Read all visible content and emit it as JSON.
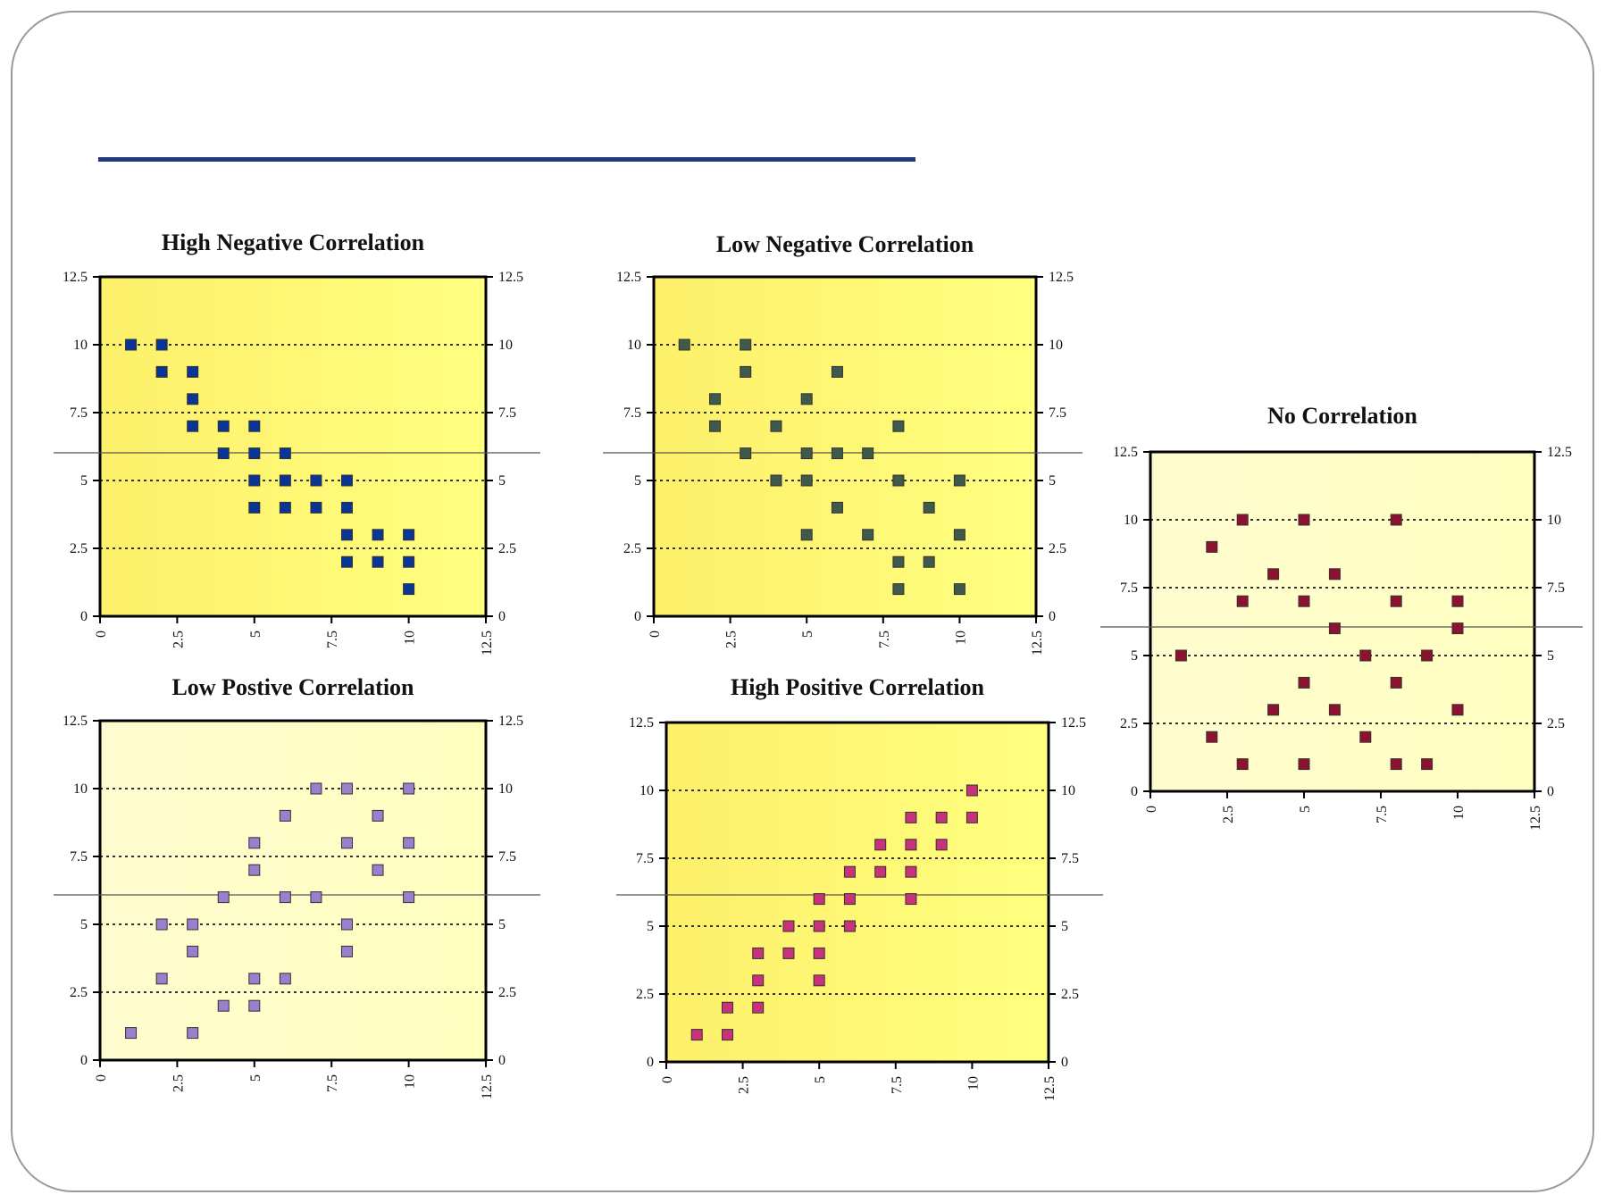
{
  "colors": {
    "rule": "#1f3a7a",
    "plot_background_bright": "#ffff80",
    "plot_background_pale": "#ffffc8"
  },
  "chart_data": [
    {
      "id": "high-negative",
      "type": "scatter",
      "title": "High Negative Correlation",
      "xlim": [
        0,
        12.5
      ],
      "ylim": [
        0,
        12.5
      ],
      "x_ticks": [
        "0",
        "2.5",
        "5",
        "7.5",
        "10",
        "12.5"
      ],
      "y_ticks": [
        "0",
        "2.5",
        "5",
        "7.5",
        "10",
        "12.5"
      ],
      "grid": "dotted horizontal at 2.5, 5, 7.5, 10",
      "marker_color": "#0a3596",
      "background": "#ffff80",
      "points": [
        [
          1,
          10
        ],
        [
          2,
          10
        ],
        [
          2,
          9
        ],
        [
          3,
          9
        ],
        [
          3,
          8
        ],
        [
          3,
          7
        ],
        [
          4,
          7
        ],
        [
          5,
          7
        ],
        [
          4,
          6
        ],
        [
          5,
          6
        ],
        [
          6,
          6
        ],
        [
          5,
          5
        ],
        [
          6,
          5
        ],
        [
          7,
          5
        ],
        [
          8,
          5
        ],
        [
          5,
          4
        ],
        [
          6,
          4
        ],
        [
          7,
          4
        ],
        [
          8,
          4
        ],
        [
          8,
          3
        ],
        [
          9,
          3
        ],
        [
          10,
          3
        ],
        [
          8,
          2
        ],
        [
          9,
          2
        ],
        [
          10,
          2
        ],
        [
          10,
          1
        ]
      ]
    },
    {
      "id": "low-negative",
      "type": "scatter",
      "title": "Low Negative Correlation",
      "xlim": [
        0,
        12.5
      ],
      "ylim": [
        0,
        12.5
      ],
      "x_ticks": [
        "0",
        "2.5",
        "5",
        "7.5",
        "10",
        "12.5"
      ],
      "y_ticks": [
        "0",
        "2.5",
        "5",
        "7.5",
        "10",
        "12.5"
      ],
      "grid": "dotted horizontal at 2.5, 5, 7.5, 10",
      "marker_color": "#3f5a4a",
      "background": "#ffff80",
      "points": [
        [
          1,
          10
        ],
        [
          3,
          10
        ],
        [
          3,
          9
        ],
        [
          6,
          9
        ],
        [
          2,
          8
        ],
        [
          5,
          8
        ],
        [
          2,
          7
        ],
        [
          4,
          7
        ],
        [
          8,
          7
        ],
        [
          3,
          6
        ],
        [
          5,
          6
        ],
        [
          6,
          6
        ],
        [
          7,
          6
        ],
        [
          4,
          5
        ],
        [
          5,
          5
        ],
        [
          8,
          5
        ],
        [
          10,
          5
        ],
        [
          6,
          4
        ],
        [
          9,
          4
        ],
        [
          5,
          3
        ],
        [
          7,
          3
        ],
        [
          10,
          3
        ],
        [
          8,
          2
        ],
        [
          9,
          2
        ],
        [
          8,
          1
        ],
        [
          10,
          1
        ]
      ]
    },
    {
      "id": "no-correlation",
      "type": "scatter",
      "title": "No Correlation",
      "xlim": [
        0,
        12.5
      ],
      "ylim": [
        0,
        12.5
      ],
      "x_ticks": [
        "0",
        "2.5",
        "5",
        "7.5",
        "10",
        "12.5"
      ],
      "y_ticks": [
        "0",
        "2.5",
        "5",
        "7.5",
        "10",
        "12.5"
      ],
      "grid": "dotted horizontal at 2.5, 5, 7.5, 10",
      "marker_color": "#8c1230",
      "background": "#ffffc8",
      "points": [
        [
          3,
          10
        ],
        [
          5,
          10
        ],
        [
          8,
          10
        ],
        [
          2,
          9
        ],
        [
          4,
          8
        ],
        [
          6,
          8
        ],
        [
          3,
          7
        ],
        [
          5,
          7
        ],
        [
          8,
          7
        ],
        [
          10,
          7
        ],
        [
          6,
          6
        ],
        [
          10,
          6
        ],
        [
          1,
          5
        ],
        [
          7,
          5
        ],
        [
          9,
          5
        ],
        [
          5,
          4
        ],
        [
          8,
          4
        ],
        [
          4,
          3
        ],
        [
          6,
          3
        ],
        [
          10,
          3
        ],
        [
          2,
          2
        ],
        [
          7,
          2
        ],
        [
          3,
          1
        ],
        [
          5,
          1
        ],
        [
          8,
          1
        ],
        [
          9,
          1
        ]
      ]
    },
    {
      "id": "low-positive",
      "type": "scatter",
      "title": "Low Postive Correlation",
      "xlim": [
        0,
        12.5
      ],
      "ylim": [
        0,
        12.5
      ],
      "x_ticks": [
        "0",
        "2.5",
        "5",
        "7.5",
        "10",
        "12.5"
      ],
      "y_ticks": [
        "0",
        "2.5",
        "5",
        "7.5",
        "10",
        "12.5"
      ],
      "grid": "dotted horizontal at 2.5, 5, 7.5, 10",
      "marker_color": "#9b7fcc",
      "background": "#ffffc8",
      "points": [
        [
          7,
          10
        ],
        [
          8,
          10
        ],
        [
          10,
          10
        ],
        [
          6,
          9
        ],
        [
          9,
          9
        ],
        [
          5,
          8
        ],
        [
          8,
          8
        ],
        [
          10,
          8
        ],
        [
          5,
          7
        ],
        [
          9,
          7
        ],
        [
          4,
          6
        ],
        [
          6,
          6
        ],
        [
          7,
          6
        ],
        [
          10,
          6
        ],
        [
          2,
          5
        ],
        [
          3,
          5
        ],
        [
          8,
          5
        ],
        [
          3,
          4
        ],
        [
          8,
          4
        ],
        [
          2,
          3
        ],
        [
          5,
          3
        ],
        [
          6,
          3
        ],
        [
          4,
          2
        ],
        [
          5,
          2
        ],
        [
          1,
          1
        ],
        [
          3,
          1
        ]
      ]
    },
    {
      "id": "high-positive",
      "type": "scatter",
      "title": "High Positive Correlation",
      "xlim": [
        0,
        12.5
      ],
      "ylim": [
        0,
        12.5
      ],
      "x_ticks": [
        "0",
        "2.5",
        "5",
        "7.5",
        "10",
        "12.5"
      ],
      "y_ticks": [
        "0",
        "2.5",
        "5",
        "7.5",
        "10",
        "12.5"
      ],
      "grid": "dotted horizontal at 2.5, 5, 7.5, 10",
      "marker_color": "#c8327a",
      "background": "#ffff80",
      "points": [
        [
          10,
          10
        ],
        [
          8,
          9
        ],
        [
          9,
          9
        ],
        [
          10,
          9
        ],
        [
          7,
          8
        ],
        [
          8,
          8
        ],
        [
          9,
          8
        ],
        [
          6,
          7
        ],
        [
          7,
          7
        ],
        [
          8,
          7
        ],
        [
          5,
          6
        ],
        [
          6,
          6
        ],
        [
          8,
          6
        ],
        [
          4,
          5
        ],
        [
          5,
          5
        ],
        [
          6,
          5
        ],
        [
          3,
          4
        ],
        [
          4,
          4
        ],
        [
          5,
          4
        ],
        [
          3,
          3
        ],
        [
          5,
          3
        ],
        [
          2,
          2
        ],
        [
          3,
          2
        ],
        [
          1,
          1
        ],
        [
          2,
          1
        ]
      ]
    }
  ]
}
